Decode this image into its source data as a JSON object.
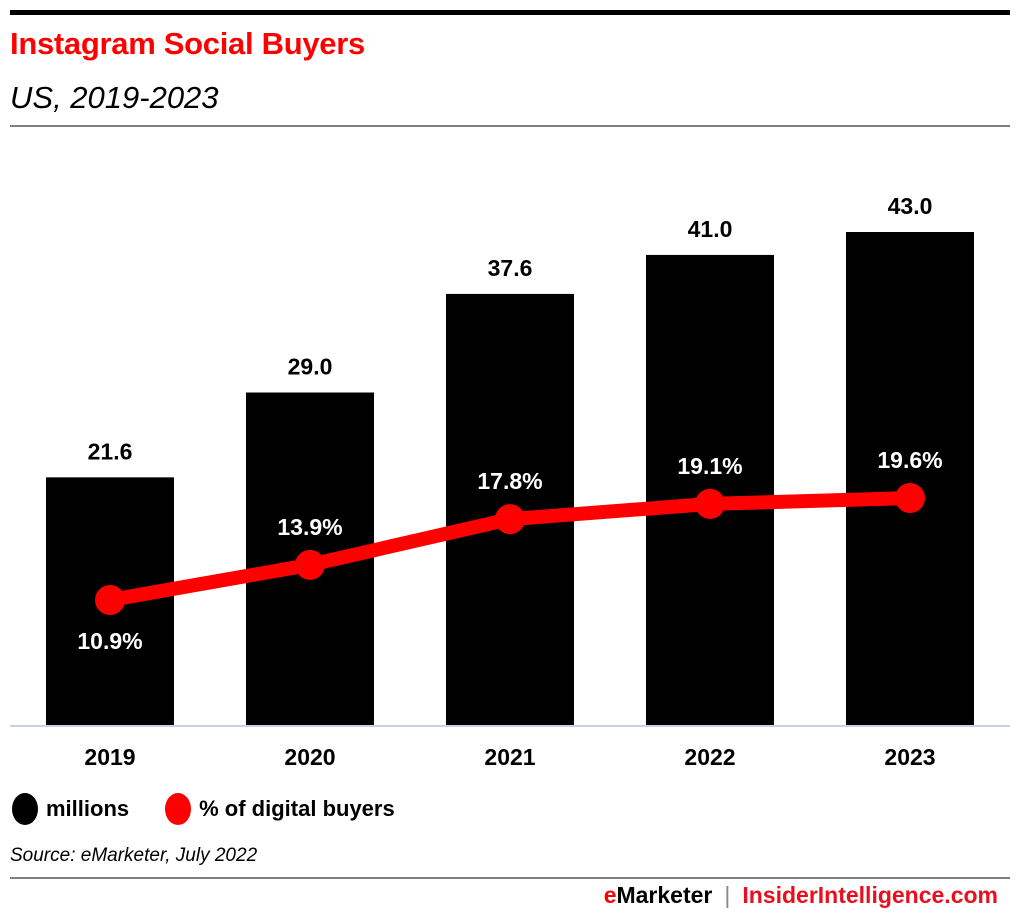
{
  "header": {
    "title": "Instagram Social Buyers",
    "subtitle": "US, 2019-2023"
  },
  "legend": [
    {
      "label": "millions",
      "color": "#000000"
    },
    {
      "label": "% of digital buyers",
      "color": "#ff0000"
    }
  ],
  "source": "Source: eMarketer, July 2022",
  "footer": {
    "brand_e": "e",
    "brand_rest": "Marketer",
    "separator": "|",
    "site": "InsiderIntelligence.com"
  },
  "chart_data": {
    "type": "bar",
    "title": "Instagram Social Buyers",
    "subtitle": "US, 2019-2023",
    "categories": [
      "2019",
      "2020",
      "2021",
      "2022",
      "2023"
    ],
    "series": [
      {
        "name": "millions",
        "type": "bar",
        "color": "#000000",
        "values": [
          21.6,
          29.0,
          37.6,
          41.0,
          43.0
        ],
        "labels": [
          "21.6",
          "29.0",
          "37.6",
          "41.0",
          "43.0"
        ]
      },
      {
        "name": "% of digital buyers",
        "type": "line",
        "color": "#ff0000",
        "values": [
          10.9,
          13.9,
          17.8,
          19.1,
          19.6
        ],
        "labels": [
          "10.9%",
          "13.9%",
          "17.8%",
          "19.1%",
          "19.6%"
        ]
      }
    ],
    "xlabel": "",
    "ylabel": "",
    "grid": false,
    "legend_position": "bottom-left"
  }
}
